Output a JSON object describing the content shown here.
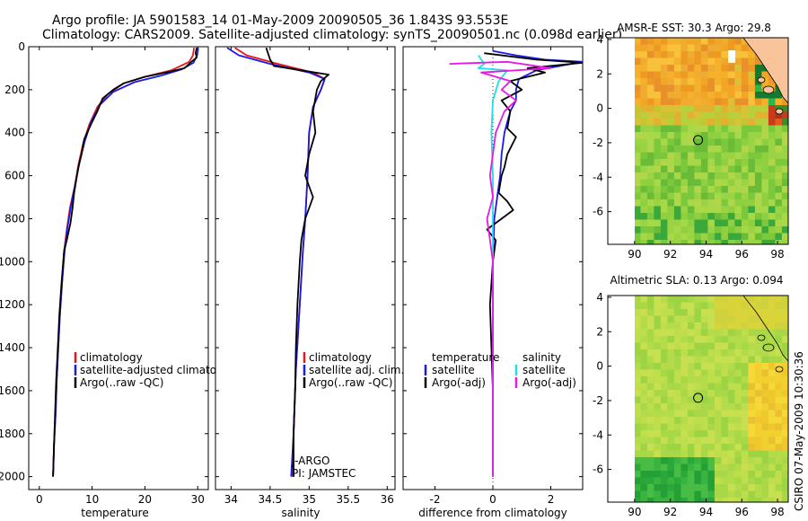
{
  "title": {
    "line1": "Argo profile: JA 5901583_14 01-May-2009 20090505_36 1.843S 93.553E",
    "line2": "Climatology: CARS2009. Satellite-adjusted climatology: synTS_20090501.nc (0.098d earlier)"
  },
  "side_label": "CSIRO 07-May-2009 10:30:36",
  "colors": {
    "red": "#e8141a",
    "blue": "#1a1ae6",
    "black": "#000000",
    "cyan": "#22dde6",
    "magenta": "#e61ae6"
  },
  "chart_data": [
    {
      "id": "temperature",
      "type": "line",
      "xlabel": "temperature",
      "xlim": [
        -2,
        32
      ],
      "xticks": [
        "0",
        "10",
        "20",
        "30"
      ],
      "xtick_values": [
        0,
        10,
        20,
        30
      ],
      "ylim": [
        0,
        2060
      ],
      "yticks": [
        "0",
        "200",
        "400",
        "600",
        "800",
        "1000",
        "1200",
        "1400",
        "1600",
        "1800",
        "2000"
      ],
      "ytick_values": [
        0,
        200,
        400,
        600,
        800,
        1000,
        1200,
        1400,
        1600,
        1800,
        2000
      ],
      "legend": [
        "climatology",
        "satellite-adjusted climatology",
        "Argo(..raw -QC)"
      ],
      "series": [
        {
          "name": "climatology",
          "color": "red",
          "points": [
            [
              29.3,
              5
            ],
            [
              29.1,
              40
            ],
            [
              28.4,
              70
            ],
            [
              25,
              110
            ],
            [
              20,
              140
            ],
            [
              16,
              170
            ],
            [
              13,
              220
            ],
            [
              11,
              280
            ],
            [
              9.5,
              360
            ],
            [
              8.3,
              450
            ],
            [
              7.4,
              550
            ],
            [
              6.7,
              650
            ],
            [
              5.8,
              750
            ],
            [
              5.2,
              850
            ],
            [
              4.7,
              950
            ],
            [
              4.3,
              1100
            ],
            [
              3.9,
              1250
            ],
            [
              3.6,
              1400
            ],
            [
              3.3,
              1550
            ],
            [
              3.1,
              1700
            ],
            [
              2.8,
              1850
            ],
            [
              2.6,
              2000
            ]
          ]
        },
        {
          "name": "satellite-adjusted climatology",
          "color": "blue",
          "points": [
            [
              30.1,
              5
            ],
            [
              29.9,
              40
            ],
            [
              29.2,
              75
            ],
            [
              27,
              105
            ],
            [
              23,
              135
            ],
            [
              18,
              165
            ],
            [
              14,
              210
            ],
            [
              11.5,
              270
            ],
            [
              9.8,
              350
            ],
            [
              8.6,
              440
            ],
            [
              7.6,
              540
            ],
            [
              6.8,
              640
            ],
            [
              6,
              740
            ],
            [
              5.3,
              850
            ],
            [
              4.8,
              950
            ],
            [
              4.3,
              1100
            ],
            [
              3.9,
              1250
            ],
            [
              3.6,
              1400
            ],
            [
              3.3,
              1550
            ],
            [
              3.1,
              1700
            ],
            [
              2.8,
              1850
            ],
            [
              2.6,
              2000
            ]
          ]
        },
        {
          "name": "Argo(..raw -QC)",
          "color": "black",
          "points": [
            [
              29.8,
              5
            ],
            [
              29.6,
              30
            ],
            [
              29.8,
              50
            ],
            [
              28.8,
              70
            ],
            [
              27.5,
              100
            ],
            [
              24,
              120
            ],
            [
              20,
              140
            ],
            [
              16,
              170
            ],
            [
              14,
              200
            ],
            [
              12,
              240
            ],
            [
              11,
              300
            ],
            [
              10,
              350
            ],
            [
              8.5,
              430
            ],
            [
              8,
              500
            ],
            [
              7.4,
              560
            ],
            [
              7,
              620
            ],
            [
              6.6,
              680
            ],
            [
              6.3,
              750
            ],
            [
              5.9,
              820
            ],
            [
              5.2,
              900
            ],
            [
              4.7,
              950
            ],
            [
              4.2,
              1100
            ],
            [
              3.8,
              1250
            ],
            [
              3.5,
              1400
            ],
            [
              3.2,
              1550
            ],
            [
              3,
              1700
            ],
            [
              2.8,
              1850
            ],
            [
              2.6,
              2000
            ]
          ]
        }
      ]
    },
    {
      "id": "salinity",
      "type": "line",
      "xlabel": "salinity",
      "xlim": [
        33.8,
        36.1
      ],
      "xticks": [
        "34",
        "34.5",
        "35",
        "35.5",
        "36"
      ],
      "xtick_values": [
        34,
        34.5,
        35,
        35.5,
        36
      ],
      "ylim": [
        0,
        2060
      ],
      "legend": [
        "climatology",
        "satellite adj. clim.",
        "Argo(..raw -QC)"
      ],
      "annotations": [
        "J-ARGO",
        "PI: JAMSTEC"
      ],
      "series": [
        {
          "name": "climatology",
          "color": "red",
          "points": [
            [
              34.05,
              5
            ],
            [
              34.2,
              40
            ],
            [
              34.6,
              80
            ],
            [
              35.05,
              120
            ],
            [
              35.2,
              150
            ],
            [
              35.15,
              200
            ],
            [
              35.05,
              280
            ],
            [
              35.0,
              400
            ],
            [
              34.98,
              600
            ],
            [
              34.95,
              800
            ],
            [
              34.92,
              950
            ],
            [
              34.88,
              1200
            ],
            [
              34.83,
              1500
            ],
            [
              34.8,
              1800
            ],
            [
              34.78,
              2000
            ]
          ]
        },
        {
          "name": "satellite adj. clim.",
          "color": "blue",
          "points": [
            [
              33.95,
              5
            ],
            [
              34.1,
              40
            ],
            [
              34.5,
              80
            ],
            [
              35.0,
              120
            ],
            [
              35.2,
              150
            ],
            [
              35.15,
              200
            ],
            [
              35.05,
              280
            ],
            [
              35.0,
              400
            ],
            [
              34.98,
              600
            ],
            [
              34.95,
              800
            ],
            [
              34.92,
              950
            ],
            [
              34.88,
              1200
            ],
            [
              34.83,
              1500
            ],
            [
              34.8,
              1800
            ],
            [
              34.77,
              2000
            ]
          ]
        },
        {
          "name": "Argo(..raw -QC)",
          "color": "black",
          "points": [
            [
              34.45,
              5
            ],
            [
              34.5,
              60
            ],
            [
              34.55,
              90
            ],
            [
              34.9,
              110
            ],
            [
              35.25,
              130
            ],
            [
              35.15,
              160
            ],
            [
              35.1,
              200
            ],
            [
              35.05,
              300
            ],
            [
              35.08,
              400
            ],
            [
              35.0,
              500
            ],
            [
              34.95,
              600
            ],
            [
              35.05,
              700
            ],
            [
              34.95,
              800
            ],
            [
              34.9,
              900
            ],
            [
              34.88,
              1000
            ],
            [
              34.85,
              1200
            ],
            [
              34.83,
              1400
            ],
            [
              34.82,
              1600
            ],
            [
              34.8,
              1800
            ],
            [
              34.8,
              2000
            ]
          ]
        }
      ]
    },
    {
      "id": "difference",
      "type": "line",
      "xlabel": "difference from climatology",
      "xlim": [
        -3.1,
        3.1
      ],
      "xticks": [
        "-2",
        "0",
        "2"
      ],
      "xtick_values": [
        -2,
        0,
        2
      ],
      "ylim": [
        0,
        2060
      ],
      "legend_left_title": "temperature",
      "legend_right_title": "salinity",
      "legend_left": [
        "satellite",
        "Argo(-adj)"
      ],
      "legend_right": [
        "satellite",
        "Argo(-adj)"
      ],
      "series": [
        {
          "name": "temperature satellite",
          "color": "blue",
          "points": [
            [
              0,
              20
            ],
            [
              0.8,
              40
            ],
            [
              1.8,
              60
            ],
            [
              3.1,
              70
            ],
            [
              1.5,
              110
            ],
            [
              0.9,
              150
            ],
            [
              0.8,
              200
            ],
            [
              0.8,
              250
            ],
            [
              0.6,
              300
            ],
            [
              0.5,
              350
            ],
            [
              0.4,
              400
            ],
            [
              0.3,
              500
            ],
            [
              0.25,
              600
            ],
            [
              0.15,
              700
            ],
            [
              0.05,
              800
            ],
            [
              0.0,
              1000
            ],
            [
              0.0,
              1500
            ],
            [
              0.0,
              2000
            ]
          ]
        },
        {
          "name": "temperature Argo(-adj)",
          "color": "black",
          "points": [
            [
              -0.3,
              30
            ],
            [
              1.5,
              60
            ],
            [
              3.1,
              75
            ],
            [
              1.2,
              100
            ],
            [
              1.8,
              120
            ],
            [
              0.6,
              160
            ],
            [
              1.0,
              200
            ],
            [
              0.3,
              250
            ],
            [
              0.6,
              300
            ],
            [
              0.5,
              380
            ],
            [
              0.8,
              420
            ],
            [
              0.5,
              500
            ],
            [
              0.4,
              560
            ],
            [
              0.3,
              600
            ],
            [
              0.2,
              680
            ],
            [
              0.5,
              720
            ],
            [
              0.7,
              760
            ],
            [
              0.3,
              800
            ],
            [
              -0.2,
              850
            ],
            [
              0.1,
              900
            ],
            [
              0.0,
              1000
            ],
            [
              -0.1,
              1200
            ],
            [
              -0.05,
              1400
            ],
            [
              0.0,
              1600
            ],
            [
              0.0,
              2000
            ]
          ]
        },
        {
          "name": "salinity satellite",
          "color": "cyan",
          "points": [
            [
              -0.5,
              40
            ],
            [
              -0.3,
              80
            ],
            [
              -0.5,
              100
            ],
            [
              0.5,
              110
            ],
            [
              0.2,
              160
            ],
            [
              0.0,
              250
            ],
            [
              -0.05,
              400
            ],
            [
              0.0,
              600
            ],
            [
              0.0,
              1000
            ],
            [
              0.0,
              1500
            ],
            [
              0.0,
              2000
            ]
          ]
        },
        {
          "name": "salinity Argo(-adj)",
          "color": "magenta",
          "points": [
            [
              -1.5,
              80
            ],
            [
              0.5,
              70
            ],
            [
              2.0,
              100
            ],
            [
              -0.4,
              120
            ],
            [
              0.6,
              160
            ],
            [
              0.3,
              200
            ],
            [
              0.8,
              250
            ],
            [
              0.4,
              300
            ],
            [
              0.1,
              400
            ],
            [
              -0.1,
              600
            ],
            [
              0.0,
              700
            ],
            [
              -0.2,
              800
            ],
            [
              -0.1,
              900
            ],
            [
              0.0,
              1000
            ],
            [
              0.0,
              2000
            ]
          ]
        }
      ]
    },
    {
      "id": "sst_map",
      "type": "heatmap",
      "title": "AMSR-E SST: 30.3 Argo: 29.8",
      "xlim": [
        88.5,
        98.6
      ],
      "ylim": [
        -7.9,
        4.1
      ],
      "xticks": [
        "90",
        "92",
        "94",
        "96",
        "98"
      ],
      "xtick_values": [
        90,
        92,
        94,
        96,
        98
      ],
      "yticks": [
        "4",
        "2",
        "0",
        "-2",
        "-4",
        "-6"
      ],
      "ytick_values": [
        4,
        2,
        0,
        -2,
        -4,
        -6
      ],
      "marker": {
        "lon": 93.553,
        "lat": -1.843
      }
    },
    {
      "id": "sla_map",
      "type": "heatmap",
      "title": "Altimetric SLA: 0.13 Argo: 0.094",
      "xlim": [
        88.5,
        98.6
      ],
      "ylim": [
        -7.9,
        4.1
      ],
      "xticks": [
        "90",
        "92",
        "94",
        "96",
        "98"
      ],
      "xtick_values": [
        90,
        92,
        94,
        96,
        98
      ],
      "yticks": [
        "4",
        "2",
        "0",
        "-2",
        "-4",
        "-6"
      ],
      "ytick_values": [
        4,
        2,
        0,
        -2,
        -4,
        -6
      ],
      "marker": {
        "lon": 93.553,
        "lat": -1.843
      }
    }
  ]
}
